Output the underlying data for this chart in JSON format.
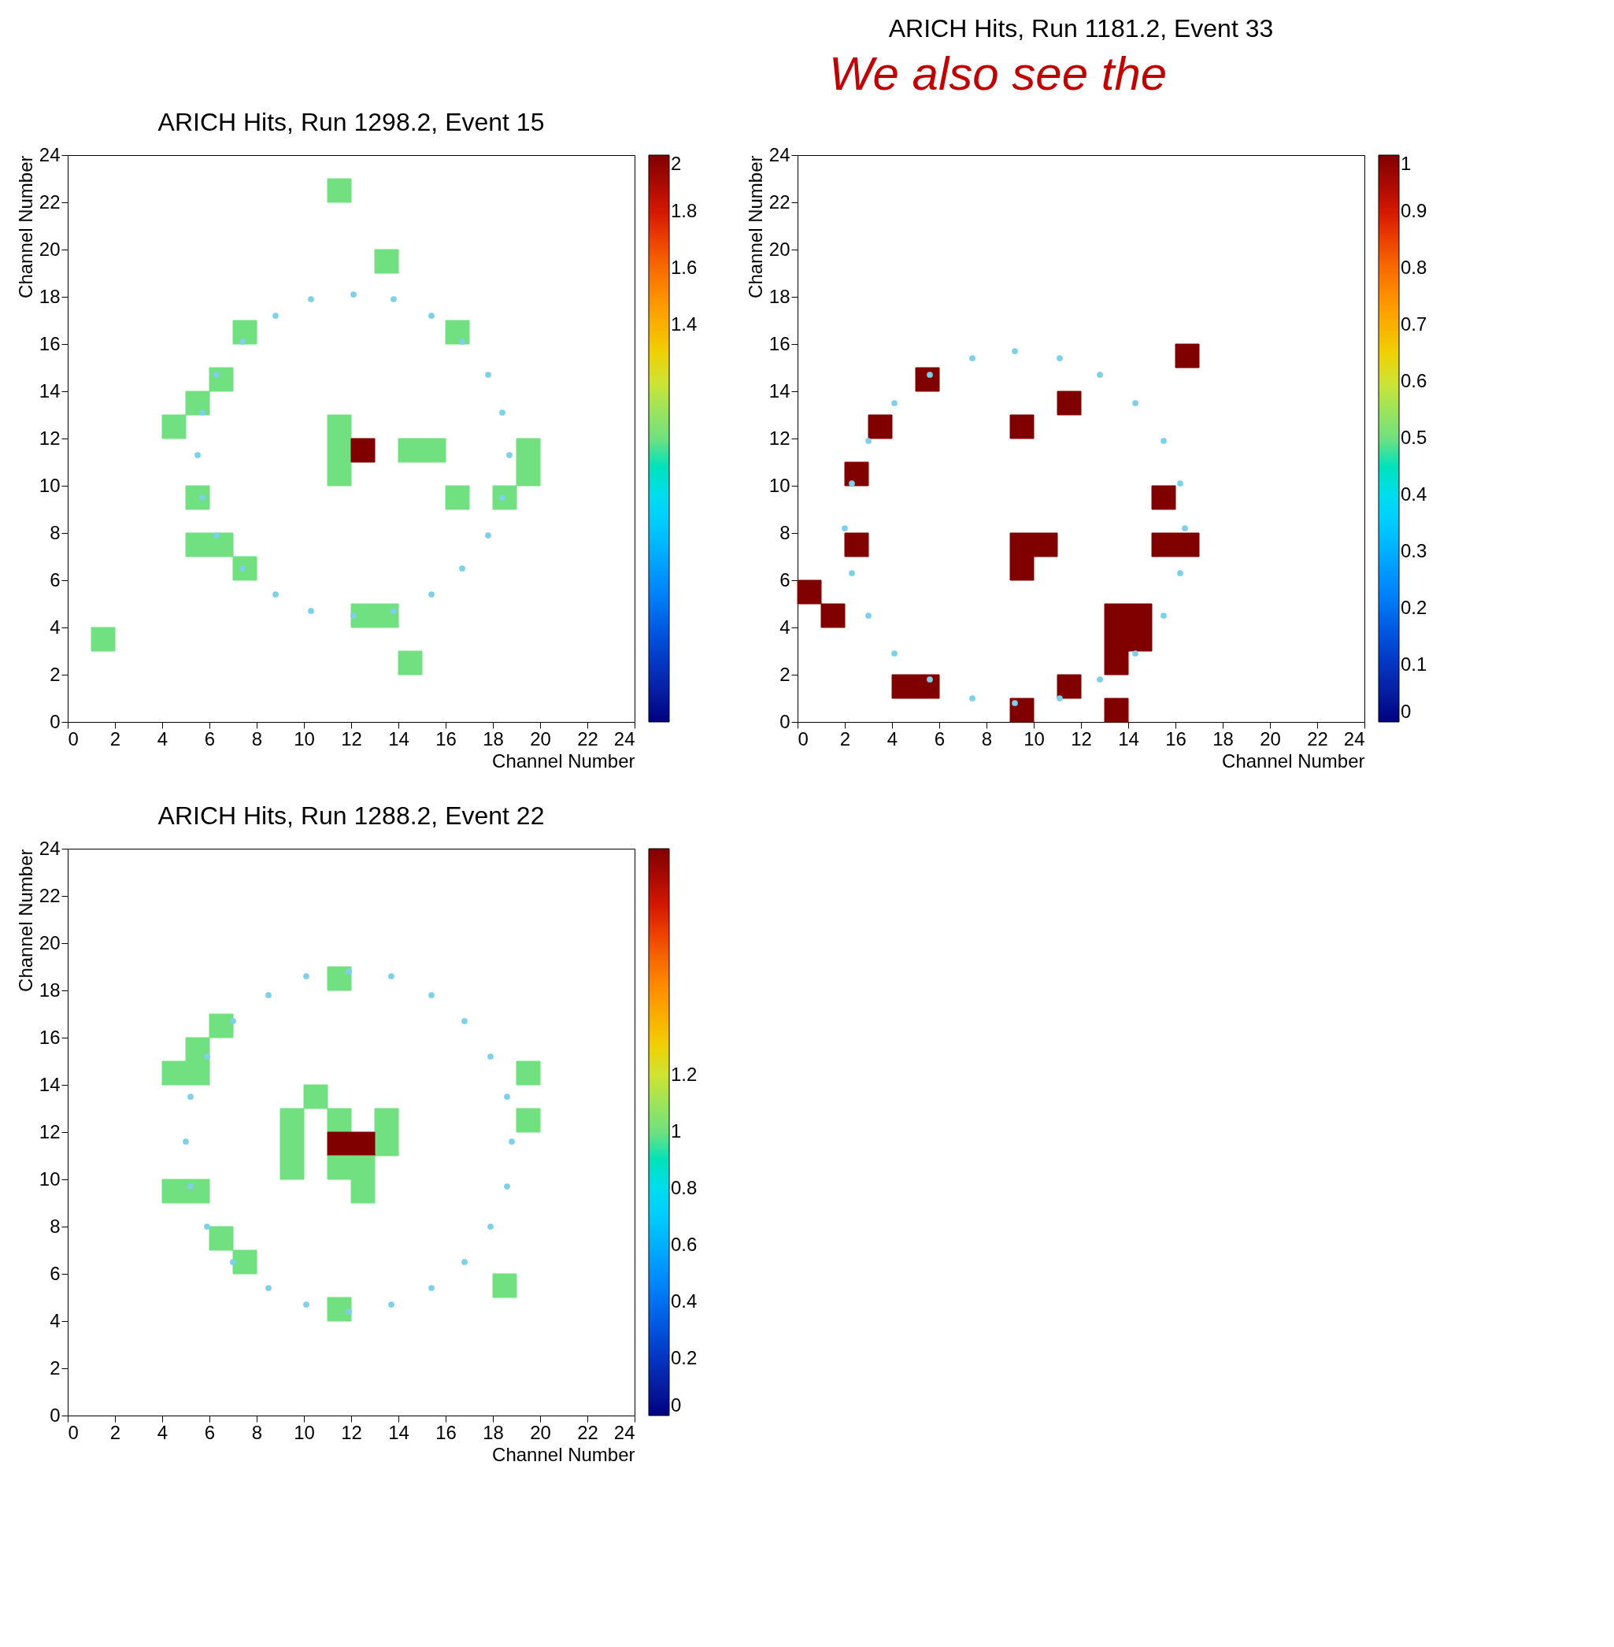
{
  "chart_data": [
    {
      "type": "scatter",
      "title": "ARICH Hits, Run 1298.2, Event 15",
      "xlabel": "Channel Number",
      "ylabel": "Channel Number",
      "xlim": [
        0,
        24
      ],
      "ylim": [
        0,
        24
      ],
      "xticks": [
        0,
        2,
        4,
        6,
        8,
        10,
        12,
        14,
        16,
        18,
        20,
        22,
        24
      ],
      "yticks": [
        0,
        2,
        4,
        6,
        8,
        10,
        12,
        14,
        16,
        18,
        20,
        22,
        24
      ],
      "clim": [
        0,
        2
      ],
      "cticks": [
        1.4,
        1.6,
        1.8,
        2
      ],
      "grid": false,
      "series": [
        {
          "type": "scatter",
          "marker": "square",
          "x": [
            11.5,
            13.5,
            7.5,
            16.5,
            6.5,
            5.5,
            4.5,
            11.5,
            11.5,
            11.5,
            12.5,
            14.5,
            15.5,
            19.5,
            19.5,
            5.5,
            16.5,
            18.5,
            5.5,
            6.5,
            7.5,
            12.5,
            13.5,
            1.5,
            14.5
          ],
          "values": [
            22.5,
            19.5,
            16.5,
            16.5,
            14.5,
            13.5,
            12.5,
            10.5,
            11.5,
            12.5,
            11.5,
            11.5,
            11.5,
            10.5,
            11.5,
            9.5,
            9.5,
            9.5,
            7.5,
            7.5,
            6.5,
            4.5,
            4.5,
            3.5,
            2.5
          ],
          "cvalues": [
            1,
            1,
            1,
            1,
            1,
            1,
            1,
            1,
            1,
            1,
            2,
            1,
            1,
            1,
            1,
            1,
            1,
            1,
            1,
            1,
            1,
            1,
            1,
            1,
            1
          ],
          "colors": [
            "#70e080",
            "#70e080",
            "#70e080",
            "#70e080",
            "#70e080",
            "#70e080",
            "#70e080",
            "#70e080",
            "#70e080",
            "#70e080",
            "#800000",
            "#70e080",
            "#70e080",
            "#70e080",
            "#70e080",
            "#70e080",
            "#70e080",
            "#70e080",
            "#70e080",
            "#70e080",
            "#70e080",
            "#70e080",
            "#70e080",
            "#70e080",
            "#70e080"
          ]
        },
        {
          "type": "scatter",
          "marker": "circle",
          "color": "#7ecfe8",
          "x": [
            18.7,
            18.4,
            17.8,
            16.7,
            15.4,
            13.8,
            12.1,
            10.3,
            8.8,
            7.4,
            6.3,
            5.7,
            5.5,
            5.7,
            6.3,
            7.4,
            8.8,
            10.3,
            12.1,
            13.8,
            15.4,
            16.7,
            17.8,
            18.4
          ],
          "values": [
            11.3,
            13.1,
            14.7,
            16.1,
            17.2,
            17.9,
            18.1,
            17.9,
            17.2,
            16.1,
            14.7,
            13.1,
            11.3,
            9.5,
            7.9,
            6.5,
            5.4,
            4.7,
            4.5,
            4.7,
            5.4,
            6.5,
            7.9,
            9.5
          ]
        }
      ]
    },
    {
      "type": "scatter",
      "title": "ARICH Hits, Run 1181.2, Event 33",
      "xlabel": "Channel Number",
      "ylabel": "Channel Number",
      "annotations": [
        "We also see the"
      ],
      "xlim": [
        0,
        24
      ],
      "ylim": [
        0,
        24
      ],
      "xticks": [
        0,
        2,
        4,
        6,
        8,
        10,
        12,
        14,
        16,
        18,
        20,
        22,
        24
      ],
      "yticks": [
        0,
        2,
        4,
        6,
        8,
        10,
        12,
        14,
        16,
        18,
        20,
        22,
        24
      ],
      "clim": [
        0,
        1
      ],
      "cticks": [
        0,
        0.1,
        0.2,
        0.3,
        0.4,
        0.5,
        0.6,
        0.7,
        0.8,
        0.9,
        1
      ],
      "grid": false,
      "series": [
        {
          "type": "scatter",
          "marker": "square",
          "x": [
            16.5,
            5.5,
            11.5,
            3.5,
            9.5,
            2.5,
            15.5,
            2.5,
            9.5,
            10.5,
            9.5,
            15.5,
            16.5,
            0.5,
            1.5,
            13.5,
            14.5,
            13.5,
            14.5,
            13.5,
            4.5,
            5.5,
            11.5,
            9.5,
            13.5
          ],
          "values": [
            15.5,
            14.5,
            13.5,
            12.5,
            12.5,
            10.5,
            9.5,
            7.5,
            7.5,
            7.5,
            6.5,
            7.5,
            7.5,
            5.5,
            4.5,
            4.5,
            4.5,
            3.5,
            3.5,
            2.5,
            1.5,
            1.5,
            1.5,
            0.5,
            0.5
          ],
          "cvalues": [
            1,
            1,
            1,
            1,
            1,
            1,
            1,
            1,
            1,
            1,
            1,
            1,
            1,
            1,
            1,
            1,
            1,
            1,
            1,
            1,
            1,
            1,
            1,
            1,
            1
          ],
          "colors": [
            "#800000",
            "#800000",
            "#800000",
            "#800000",
            "#800000",
            "#800000",
            "#800000",
            "#800000",
            "#800000",
            "#800000",
            "#800000",
            "#800000",
            "#800000",
            "#800000",
            "#800000",
            "#800000",
            "#800000",
            "#800000",
            "#800000",
            "#800000",
            "#800000",
            "#800000",
            "#800000",
            "#800000",
            "#800000"
          ]
        },
        {
          "type": "scatter",
          "marker": "circle",
          "color": "#7ecfe8",
          "x": [
            16.4,
            16.2,
            15.5,
            14.3,
            12.8,
            11.1,
            9.2,
            7.4,
            5.6,
            4.1,
            3.0,
            2.3,
            2.0,
            2.3,
            3.0,
            4.1,
            5.6,
            7.4,
            9.2,
            11.1,
            12.8,
            14.3,
            15.5,
            16.2
          ],
          "values": [
            8.2,
            10.1,
            11.9,
            13.5,
            14.7,
            15.4,
            15.7,
            15.4,
            14.7,
            13.5,
            11.9,
            10.1,
            8.2,
            6.3,
            4.5,
            2.9,
            1.8,
            1.0,
            0.8,
            1.0,
            1.8,
            2.9,
            4.5,
            6.3
          ]
        }
      ]
    },
    {
      "type": "scatter",
      "title": "ARICH Hits, Run 1288.2, Event 22",
      "xlabel": "Channel Number",
      "ylabel": "Channel Number",
      "xlim": [
        0,
        24
      ],
      "ylim": [
        0,
        24
      ],
      "xticks": [
        0,
        2,
        4,
        6,
        8,
        10,
        12,
        14,
        16,
        18,
        20,
        22,
        24
      ],
      "yticks": [
        0,
        2,
        4,
        6,
        8,
        10,
        12,
        14,
        16,
        18,
        20,
        22,
        24
      ],
      "clim": [
        0,
        2
      ],
      "cticks": [
        0,
        0.2,
        0.4,
        0.6,
        0.8,
        1,
        1.2
      ],
      "grid": false,
      "series": [
        {
          "type": "scatter",
          "marker": "square",
          "x": [
            11.5,
            6.5,
            5.5,
            4.5,
            5.5,
            19.5,
            10.5,
            9.5,
            9.5,
            9.5,
            11.5,
            13.5,
            13.5,
            19.5,
            11.5,
            12.5,
            11.5,
            12.5,
            12.5,
            4.5,
            5.5,
            6.5,
            7.5,
            18.5,
            11.5
          ],
          "values": [
            18.5,
            16.5,
            15.5,
            14.5,
            14.5,
            14.5,
            13.5,
            10.5,
            11.5,
            12.5,
            12.5,
            11.5,
            12.5,
            12.5,
            11.5,
            11.5,
            10.5,
            10.5,
            9.5,
            9.5,
            9.5,
            7.5,
            6.5,
            5.5,
            4.5
          ],
          "cvalues": [
            1,
            1,
            1,
            1,
            1,
            1,
            1,
            1,
            1,
            1,
            1,
            1,
            1,
            1,
            2,
            2,
            1,
            1,
            1,
            1,
            1,
            1,
            1,
            1,
            1
          ],
          "colors": [
            "#70e080",
            "#70e080",
            "#70e080",
            "#70e080",
            "#70e080",
            "#70e080",
            "#70e080",
            "#70e080",
            "#70e080",
            "#70e080",
            "#70e080",
            "#70e080",
            "#70e080",
            "#70e080",
            "#800000",
            "#800000",
            "#70e080",
            "#70e080",
            "#70e080",
            "#70e080",
            "#70e080",
            "#70e080",
            "#70e080",
            "#70e080",
            "#70e080"
          ]
        },
        {
          "type": "scatter",
          "marker": "circle",
          "color": "#7ecfe8",
          "x": [
            18.8,
            18.6,
            17.9,
            16.8,
            15.4,
            13.7,
            11.9,
            10.1,
            8.5,
            7.0,
            5.9,
            5.2,
            5.0,
            5.2,
            5.9,
            7.0,
            8.5,
            10.1,
            11.9,
            13.7,
            15.4,
            16.8,
            17.9,
            18.6
          ],
          "values": [
            11.6,
            13.5,
            15.2,
            16.7,
            17.8,
            18.6,
            18.8,
            18.6,
            17.8,
            16.7,
            15.2,
            13.5,
            11.6,
            9.7,
            8.0,
            6.5,
            5.4,
            4.7,
            4.4,
            4.7,
            5.4,
            6.5,
            8.0,
            9.7
          ]
        }
      ]
    }
  ]
}
